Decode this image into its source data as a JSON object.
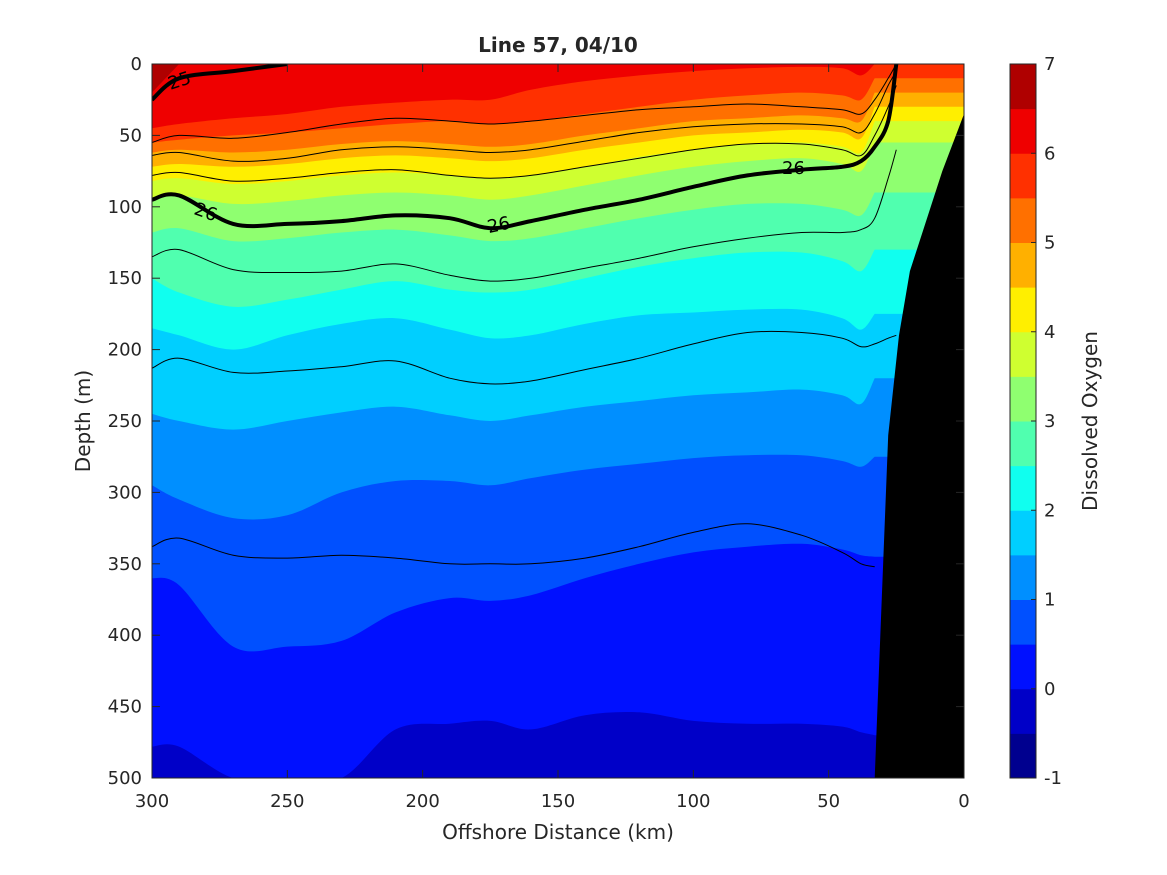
{
  "chart_data": {
    "type": "heatmap",
    "subtype": "filled-contour-section",
    "title": "Line 57, 04/10",
    "xlabel": "Offshore Distance (km)",
    "ylabel": "Depth (m)",
    "xlim": [
      300,
      0
    ],
    "x_reversed": true,
    "ylim": [
      0,
      500
    ],
    "y_reversed": true,
    "xticks": [
      "300",
      "250",
      "200",
      "150",
      "100",
      "50",
      "0"
    ],
    "xtick_values": [
      300,
      250,
      200,
      150,
      100,
      50,
      0
    ],
    "yticks": [
      "0",
      "50",
      "100",
      "150",
      "200",
      "250",
      "300",
      "350",
      "400",
      "450",
      "500"
    ],
    "ytick_values": [
      0,
      50,
      100,
      150,
      200,
      250,
      300,
      350,
      400,
      450,
      500
    ],
    "colorbar": {
      "label": "Dissolved Oxygen",
      "range": [
        -1,
        7
      ],
      "ticks": [
        "-1",
        "0",
        "1",
        "2",
        "3",
        "4",
        "5",
        "6",
        "7"
      ],
      "tick_values": [
        -1,
        0,
        1,
        2,
        3,
        4,
        5,
        6,
        7
      ],
      "level_step": 0.5,
      "colormap": "jet",
      "colors": [
        "#00008f",
        "#0000c8",
        "#0010ff",
        "#0050ff",
        "#008fff",
        "#00cfff",
        "#10ffef",
        "#50ffaf",
        "#8fff70",
        "#cfff30",
        "#ffef00",
        "#ffb000",
        "#ff7000",
        "#ff3000",
        "#ef0000",
        "#af0000"
      ]
    },
    "oxygen_isolines": {
      "x_km": [
        300,
        290,
        270,
        250,
        230,
        210,
        190,
        175,
        160,
        140,
        120,
        100,
        80,
        60,
        45,
        38,
        33
      ],
      "depth_m_by_level": [
        {
          "level": 6.5,
          "depths": [
            20,
            0,
            null,
            null,
            null,
            null,
            null,
            null,
            null,
            null,
            null,
            null,
            null,
            null,
            null,
            null,
            null
          ]
        },
        {
          "level": 6.0,
          "depths": [
            45,
            42,
            38,
            35,
            30,
            27,
            25,
            25,
            18,
            12,
            8,
            5,
            3,
            2,
            3,
            8,
            0
          ]
        },
        {
          "level": 5.5,
          "depths": [
            55,
            53,
            50,
            48,
            45,
            42,
            40,
            42,
            40,
            35,
            30,
            25,
            22,
            20,
            22,
            25,
            10
          ]
        },
        {
          "level": 5.0,
          "depths": [
            62,
            60,
            62,
            60,
            56,
            54,
            56,
            58,
            56,
            50,
            45,
            40,
            38,
            36,
            38,
            40,
            20
          ]
        },
        {
          "level": 4.5,
          "depths": [
            72,
            70,
            72,
            70,
            66,
            64,
            66,
            68,
            66,
            60,
            55,
            50,
            48,
            46,
            48,
            52,
            30
          ]
        },
        {
          "level": 4.0,
          "depths": [
            82,
            80,
            84,
            82,
            78,
            76,
            78,
            80,
            78,
            72,
            65,
            60,
            56,
            55,
            58,
            62,
            40
          ]
        },
        {
          "level": 3.5,
          "depths": [
            95,
            92,
            98,
            96,
            92,
            90,
            92,
            95,
            92,
            85,
            78,
            72,
            68,
            66,
            70,
            75,
            55
          ]
        },
        {
          "level": 3.0,
          "depths": [
            118,
            115,
            124,
            122,
            118,
            116,
            120,
            124,
            122,
            115,
            108,
            102,
            98,
            98,
            102,
            106,
            90
          ]
        },
        {
          "level": 2.5,
          "depths": [
            150,
            160,
            170,
            165,
            158,
            152,
            158,
            160,
            158,
            150,
            142,
            136,
            132,
            132,
            138,
            145,
            130
          ]
        },
        {
          "level": 2.0,
          "depths": [
            185,
            190,
            200,
            190,
            182,
            178,
            186,
            192,
            190,
            182,
            176,
            174,
            172,
            172,
            178,
            186,
            175
          ]
        },
        {
          "level": 1.5,
          "depths": [
            245,
            250,
            256,
            250,
            244,
            240,
            246,
            250,
            246,
            240,
            236,
            232,
            230,
            228,
            232,
            238,
            220
          ]
        },
        {
          "level": 1.0,
          "depths": [
            295,
            305,
            318,
            316,
            300,
            292,
            292,
            295,
            290,
            284,
            280,
            276,
            274,
            274,
            278,
            282,
            275
          ]
        },
        {
          "level": 0.5,
          "depths": [
            360,
            365,
            408,
            408,
            404,
            384,
            374,
            376,
            372,
            360,
            350,
            342,
            338,
            336,
            340,
            344,
            345
          ]
        },
        {
          "level": 0.0,
          "depths": [
            478,
            478,
            500,
            500,
            500,
            466,
            462,
            460,
            466,
            456,
            454,
            460,
            462,
            462,
            464,
            468,
            470
          ]
        }
      ]
    },
    "density_contours": {
      "x_km": [
        300,
        290,
        270,
        250,
        230,
        210,
        190,
        175,
        160,
        140,
        120,
        100,
        80,
        60,
        45,
        38,
        33,
        28,
        25
      ],
      "lines": [
        {
          "label": "25",
          "bold": true,
          "depths": [
            25,
            10,
            5,
            0,
            null,
            null,
            null,
            null,
            null,
            null,
            null,
            null,
            null,
            null,
            null,
            null,
            null,
            null,
            null
          ]
        },
        {
          "label": "",
          "bold": false,
          "depths": [
            55,
            50,
            52,
            48,
            42,
            38,
            40,
            42,
            40,
            36,
            32,
            30,
            28,
            30,
            32,
            35,
            25,
            10,
            0
          ]
        },
        {
          "label": "",
          "bold": false,
          "depths": [
            64,
            62,
            68,
            66,
            60,
            58,
            60,
            62,
            60,
            54,
            48,
            44,
            42,
            42,
            44,
            48,
            35,
            15,
            5
          ]
        },
        {
          "label": "",
          "bold": false,
          "depths": [
            78,
            76,
            82,
            80,
            76,
            74,
            78,
            80,
            78,
            72,
            66,
            60,
            56,
            56,
            60,
            64,
            50,
            30,
            15
          ]
        },
        {
          "label": "26",
          "bold": true,
          "depths": [
            95,
            92,
            112,
            112,
            110,
            106,
            108,
            115,
            110,
            102,
            95,
            86,
            78,
            74,
            72,
            68,
            58,
            40,
            0
          ]
        },
        {
          "label": "",
          "bold": false,
          "depths": [
            135,
            130,
            144,
            146,
            145,
            140,
            148,
            152,
            150,
            143,
            136,
            128,
            122,
            118,
            118,
            116,
            108,
            80,
            60
          ]
        },
        {
          "label": "",
          "bold": false,
          "depths": [
            213,
            206,
            216,
            215,
            212,
            208,
            220,
            224,
            222,
            214,
            206,
            196,
            188,
            188,
            192,
            198,
            196,
            192,
            190
          ]
        },
        {
          "label": "",
          "bold": false,
          "depths": [
            338,
            332,
            344,
            346,
            344,
            346,
            350,
            350,
            350,
            346,
            338,
            328,
            322,
            330,
            342,
            350,
            352,
            null,
            null
          ]
        }
      ]
    },
    "seafloor": {
      "label": "",
      "x_km": [
        33,
        28,
        24,
        20,
        14,
        8,
        3,
        0
      ],
      "depth_m": [
        500,
        260,
        190,
        145,
        110,
        75,
        50,
        35
      ]
    }
  }
}
